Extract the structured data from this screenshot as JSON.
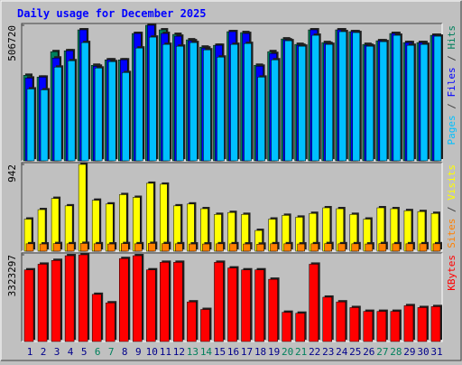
{
  "chart_data": [
    {
      "type": "bar",
      "title": "Daily usage for December 2025",
      "ylim": [
        0,
        506720
      ],
      "yticks": [
        506720
      ],
      "legend_separator": " / ",
      "series": [
        {
          "name": "Hits",
          "color": "#00805c",
          "values": [
            319700,
            312900,
            408100,
            411500,
            489700,
            357100,
            377500,
            377500,
            476100,
            506720,
            489700,
            472700,
            452300,
            425100,
            431900,
            482900,
            479500,
            357100,
            408100,
            455700,
            435300,
            489700,
            442100,
            489700,
            482900,
            435300,
            448900,
            476100,
            442100,
            442100,
            469300
          ]
        },
        {
          "name": "Files",
          "color": "#0000ff",
          "values": [
            309500,
            312900,
            384300,
            411500,
            489700,
            353700,
            377500,
            377500,
            476100,
            506700,
            476100,
            465900,
            448900,
            421700,
            431900,
            482900,
            476100,
            353700,
            401300,
            452300,
            431900,
            489700,
            438700,
            489700,
            482900,
            431900,
            448900,
            476100,
            442100,
            442100,
            469300
          ]
        },
        {
          "name": "Pages",
          "color": "#00c0ff",
          "values": [
            268700,
            265300,
            350300,
            374100,
            442100,
            346900,
            370700,
            329900,
            421700,
            462500,
            435300,
            428500,
            442100,
            414900,
            387700,
            435300,
            438700,
            312900,
            377500,
            448900,
            428500,
            469300,
            435300,
            482900,
            479500,
            428500,
            445500,
            469300,
            431900,
            435300,
            465900
          ]
        }
      ]
    },
    {
      "type": "bar",
      "ylim": [
        0,
        942
      ],
      "yticks": [
        942
      ],
      "legend_separator": " / ",
      "series": [
        {
          "name": "Visits",
          "color": "#ffff00",
          "values": [
            348,
            451,
            573,
            492,
            942,
            553,
            512,
            614,
            584,
            737,
            727,
            492,
            512,
            461,
            399,
            420,
            399,
            225,
            348,
            389,
            369,
            410,
            471,
            461,
            399,
            348,
            471,
            461,
            440,
            430,
            410
          ]
        },
        {
          "name": "Sites",
          "color": "#ff8000",
          "values": [
            80,
            78,
            82,
            80,
            84,
            80,
            78,
            82,
            80,
            84,
            82,
            80,
            78,
            78,
            80,
            80,
            78,
            76,
            80,
            80,
            78,
            80,
            82,
            80,
            80,
            78,
            82,
            80,
            80,
            80,
            80
          ]
        }
      ]
    },
    {
      "type": "bar",
      "ylim": [
        0,
        3323297
      ],
      "yticks": [
        3323297
      ],
      "categories": [
        "1",
        "2",
        "3",
        "4",
        "5",
        "6",
        "7",
        "8",
        "9",
        "10",
        "11",
        "12",
        "13",
        "14",
        "15",
        "16",
        "17",
        "18",
        "19",
        "20",
        "21",
        "22",
        "23",
        "24",
        "25",
        "26",
        "27",
        "28",
        "29",
        "30",
        "31"
      ],
      "category_colors": [
        "#00008b",
        "#00008b",
        "#00008b",
        "#00008b",
        "#00008b",
        "#00805c",
        "#00805c",
        "#00008b",
        "#00008b",
        "#00008b",
        "#00008b",
        "#00008b",
        "#00805c",
        "#00805c",
        "#00008b",
        "#00008b",
        "#00008b",
        "#00008b",
        "#00008b",
        "#00805c",
        "#00805c",
        "#00008b",
        "#00008b",
        "#00008b",
        "#00008b",
        "#00008b",
        "#00805c",
        "#00805c",
        "#00008b",
        "#00008b",
        "#00008b"
      ],
      "series": [
        {
          "name": "KBytes",
          "color": "#ff0000",
          "values": [
            2745300,
            2962100,
            3106600,
            3287200,
            3323297,
            1806200,
            1481000,
            3178800,
            3287200,
            2745300,
            3034300,
            3034300,
            1517200,
            1228200,
            3034300,
            2817600,
            2745300,
            2745300,
            2384100,
            1119800,
            1083700,
            2962100,
            1697800,
            1517200,
            1300400,
            1156000,
            1156000,
            1156000,
            1372700,
            1300400,
            1336600
          ]
        }
      ]
    }
  ]
}
